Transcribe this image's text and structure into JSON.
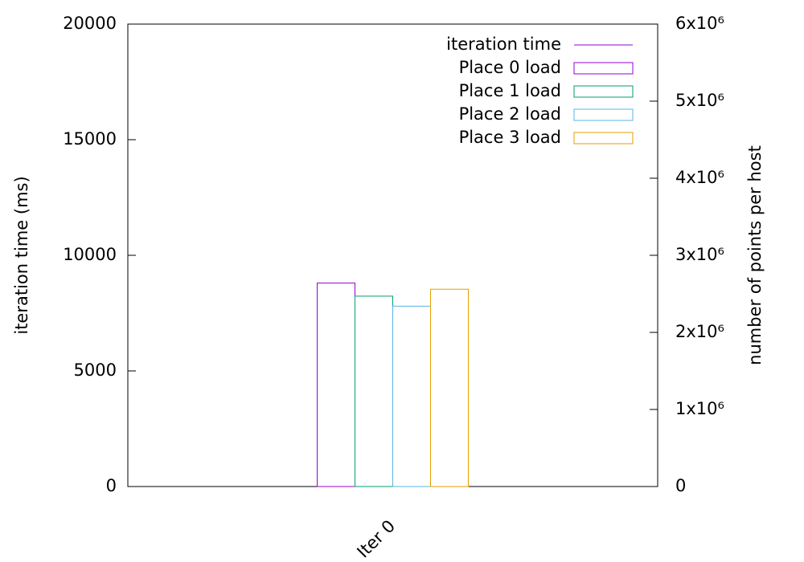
{
  "chart_data": {
    "type": "bar",
    "categories": [
      "Iter 0"
    ],
    "ylabel": "iteration time (ms)",
    "y2label": "number of points per host",
    "ylim": [
      0,
      20000
    ],
    "yticks": [
      0,
      5000,
      10000,
      15000,
      20000
    ],
    "y2lim": [
      0,
      6000000
    ],
    "y2ticks": [
      0,
      {
        "value": 1000000,
        "label": "1x10⁶"
      },
      {
        "value": 2000000,
        "label": "2x10⁶"
      },
      {
        "value": 3000000,
        "label": "3x10⁶"
      },
      {
        "value": 4000000,
        "label": "4x10⁶"
      },
      {
        "value": 5000000,
        "label": "5x10⁶"
      },
      {
        "value": 6000000,
        "label": "6x10⁶"
      }
    ],
    "legend": "top-right",
    "grid": false,
    "series": [
      {
        "name": "iteration time",
        "color": "#9400d3",
        "type": "line",
        "axis": "y",
        "values": [
          null
        ]
      },
      {
        "name": "Place 0 load",
        "color": "#9400d3",
        "type": "bar",
        "axis": "y2",
        "values": [
          2640000
        ]
      },
      {
        "name": "Place 1 load",
        "color": "#009e73",
        "type": "bar",
        "axis": "y2",
        "values": [
          2470000
        ]
      },
      {
        "name": "Place 2 load",
        "color": "#56b4e9",
        "type": "bar",
        "axis": "y2",
        "values": [
          2340000
        ]
      },
      {
        "name": "Place 3 load",
        "color": "#e69f00",
        "type": "bar",
        "axis": "y2",
        "values": [
          2560000
        ]
      }
    ]
  }
}
